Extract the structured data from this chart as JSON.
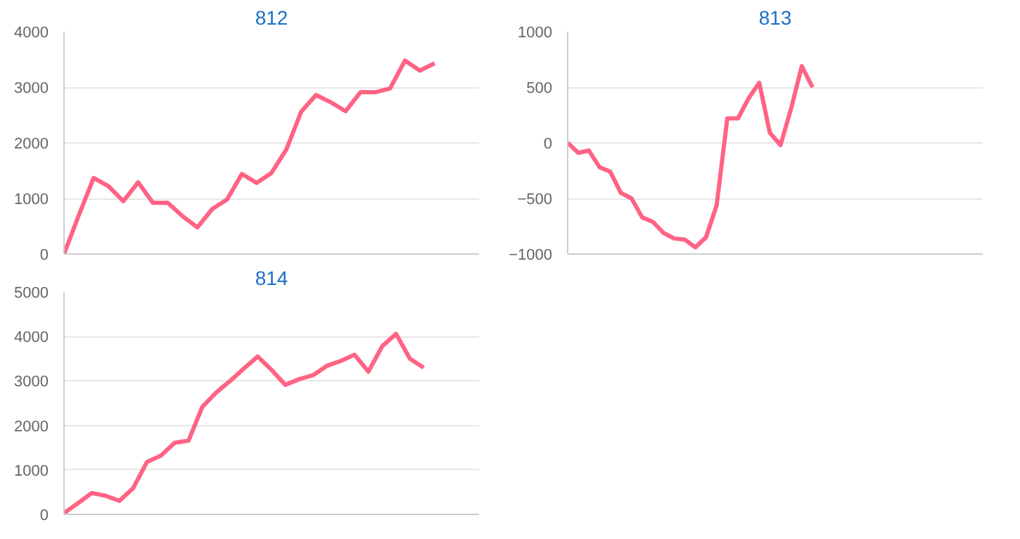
{
  "chart_data": [
    {
      "type": "line",
      "title": "812",
      "categories": [
        null,
        null,
        null,
        null,
        null,
        null,
        null,
        null,
        null,
        null,
        null,
        null,
        null,
        null,
        null,
        null,
        null,
        null,
        null,
        null,
        null,
        null,
        null,
        null,
        null,
        null,
        null,
        null,
        null
      ],
      "series": [
        {
          "color": "#ff6384",
          "values": [
            0,
            700,
            1370,
            1220,
            950,
            1290,
            920,
            920,
            680,
            480,
            810,
            980,
            1440,
            1280,
            1460,
            1880,
            2560,
            2860,
            2730,
            2570,
            2910,
            2910,
            2980,
            3480,
            3300,
            3430,
            null,
            null,
            null
          ]
        }
      ],
      "ylim": [
        0,
        4000
      ],
      "yticks": [
        0,
        1000,
        2000,
        3000,
        4000
      ],
      "grid": "y",
      "tick_labels": "y",
      "marker": "none",
      "line_style": "solid"
    },
    {
      "type": "line",
      "title": "813",
      "categories": [
        null,
        null,
        null,
        null,
        null,
        null,
        null,
        null,
        null,
        null,
        null,
        null,
        null,
        null,
        null,
        null,
        null,
        null,
        null,
        null,
        null,
        null,
        null,
        null,
        null,
        null,
        null,
        null,
        null,
        null,
        null,
        null,
        null,
        null,
        null,
        null,
        null,
        null,
        null,
        null
      ],
      "series": [
        {
          "color": "#ff6384",
          "values": [
            0,
            -90,
            -70,
            -220,
            -260,
            -450,
            -500,
            -670,
            -710,
            -810,
            -860,
            -870,
            -940,
            -850,
            -560,
            220,
            220,
            400,
            540,
            90,
            -20,
            310,
            690,
            500,
            null,
            null,
            null,
            null,
            null,
            null,
            null,
            null,
            null,
            null,
            null,
            null,
            null,
            null,
            null,
            null
          ]
        }
      ],
      "ylim": [
        -1000,
        1000
      ],
      "yticks": [
        -1000,
        -500,
        0,
        500,
        1000
      ],
      "grid": "y",
      "tick_labels": "y",
      "marker": "none",
      "line_style": "solid"
    },
    {
      "type": "line",
      "title": "814",
      "categories": [
        null,
        null,
        null,
        null,
        null,
        null,
        null,
        null,
        null,
        null,
        null,
        null,
        null,
        null,
        null,
        null,
        null,
        null,
        null,
        null,
        null,
        null,
        null,
        null,
        null,
        null,
        null,
        null,
        null,
        null,
        null
      ],
      "series": [
        {
          "color": "#ff6384",
          "values": [
            30,
            250,
            480,
            420,
            305,
            590,
            1180,
            1320,
            1610,
            1660,
            2420,
            2740,
            3000,
            3280,
            3550,
            3250,
            2910,
            3040,
            3130,
            3340,
            3450,
            3590,
            3210,
            3780,
            4060,
            3500,
            3300,
            null,
            null,
            null,
            null
          ]
        }
      ],
      "ylim": [
        0,
        5000
      ],
      "yticks": [
        0,
        1000,
        2000,
        3000,
        4000,
        5000
      ],
      "grid": "y",
      "tick_labels": "y",
      "marker": "none",
      "line_style": "solid"
    }
  ]
}
